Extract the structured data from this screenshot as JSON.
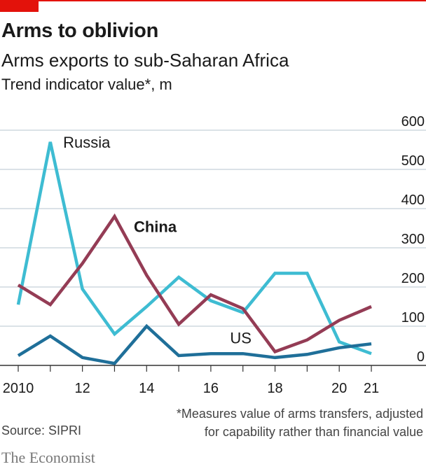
{
  "header": {
    "title": "Arms to oblivion",
    "subtitle": "Arms exports to sub-Saharan Africa",
    "unit": "Trend indicator value*, m"
  },
  "footer": {
    "footnote_line1": "*Measures value of arms transfers, adjusted",
    "footnote_line2": "for capability rather than financial value",
    "source": "Source: SIPRI",
    "brand": "The Economist"
  },
  "colors": {
    "accent": "#e3120b",
    "grid": "#b7c6cf",
    "axis": "#333333",
    "russia": "#3ebcd2",
    "china": "#943c55",
    "us": "#1f6f99"
  },
  "chart_data": {
    "type": "line",
    "x": [
      2010,
      2011,
      2012,
      2013,
      2014,
      2015,
      2016,
      2017,
      2018,
      2019,
      2020,
      2021
    ],
    "x_tick_labels": [
      {
        "value": 2010,
        "label": "2010"
      },
      {
        "value": 2012,
        "label": "12"
      },
      {
        "value": 2014,
        "label": "14"
      },
      {
        "value": 2016,
        "label": "16"
      },
      {
        "value": 2018,
        "label": "18"
      },
      {
        "value": 2020,
        "label": "20"
      },
      {
        "value": 2021,
        "label": "21"
      }
    ],
    "ylim": [
      0,
      600
    ],
    "y_ticks": [
      0,
      100,
      200,
      300,
      400,
      500,
      600
    ],
    "y_axis_side": "right",
    "grid": true,
    "series": [
      {
        "name": "Russia",
        "color": "#3ebcd2",
        "bold": false,
        "values": [
          155,
          570,
          195,
          80,
          150,
          225,
          165,
          135,
          235,
          235,
          60,
          30
        ],
        "label_at": {
          "x": 2011.4,
          "y": 555
        }
      },
      {
        "name": "China",
        "color": "#943c55",
        "bold": true,
        "values": [
          205,
          155,
          260,
          380,
          230,
          105,
          180,
          145,
          35,
          65,
          115,
          150
        ],
        "label_at": {
          "x": 2013.6,
          "y": 340
        }
      },
      {
        "name": "US",
        "color": "#1f6f99",
        "bold": false,
        "values": [
          25,
          75,
          20,
          5,
          100,
          25,
          30,
          30,
          20,
          28,
          45,
          55
        ],
        "label_at": {
          "x": 2016.6,
          "y": 56
        }
      }
    ]
  }
}
